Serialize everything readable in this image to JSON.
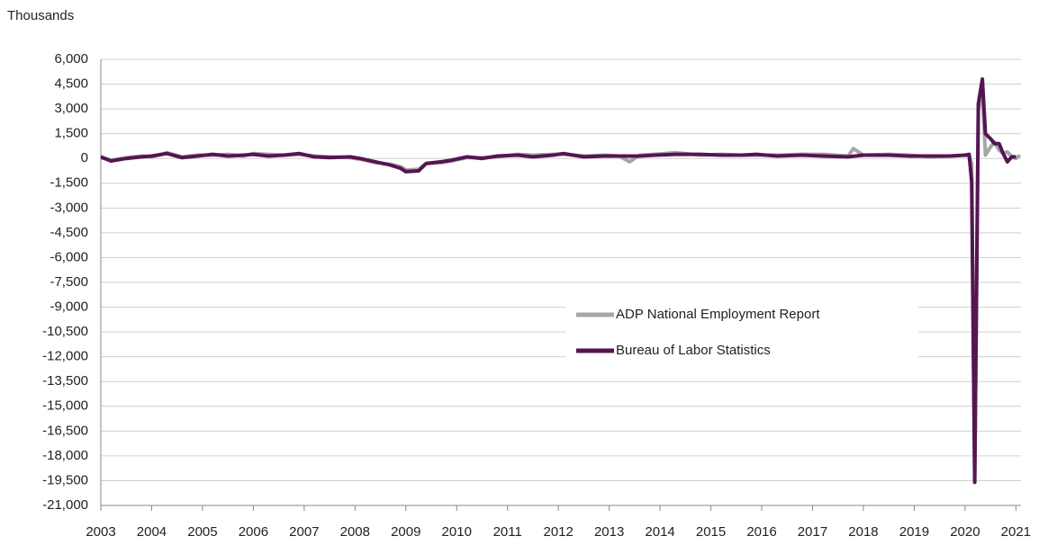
{
  "chart_data": {
    "type": "line",
    "y_label": "Thousands",
    "xlim": [
      2003,
      2021.1
    ],
    "xticks": [
      2003,
      2004,
      2005,
      2006,
      2007,
      2008,
      2009,
      2010,
      2011,
      2012,
      2013,
      2014,
      2015,
      2016,
      2017,
      2018,
      2019,
      2020,
      2021
    ],
    "ylim": [
      -21000,
      6000
    ],
    "yticks": [
      {
        "value": 6000,
        "label": "6,000"
      },
      {
        "value": 4500,
        "label": "4,500"
      },
      {
        "value": 3000,
        "label": "3,000"
      },
      {
        "value": 1500,
        "label": "1,500"
      },
      0,
      {
        "value": -1500,
        "label": "-1,500"
      },
      {
        "value": -3000,
        "label": "-3,000"
      },
      {
        "value": -4500,
        "label": "-4,500"
      },
      {
        "value": -6000,
        "label": "-6,000"
      },
      {
        "value": -7500,
        "label": "-7,500"
      },
      {
        "value": -9000,
        "label": "-9,000"
      },
      {
        "value": -10500,
        "label": "-10,500"
      },
      {
        "value": -12000,
        "label": "-12,000"
      },
      {
        "value": -13500,
        "label": "-13,500"
      },
      {
        "value": -15000,
        "label": "-15,000"
      },
      {
        "value": -16500,
        "label": "-16,500"
      },
      {
        "value": -18000,
        "label": "-18,000"
      },
      {
        "value": -19500,
        "label": "-19,500"
      },
      {
        "value": -21000,
        "label": "-21,000"
      }
    ],
    "grid": true,
    "series": [
      {
        "name": "ADP National Employment Report",
        "color": "#a6a6a6",
        "x": [
          2003.0,
          2003.2,
          2003.5,
          2003.8,
          2004.0,
          2004.3,
          2004.6,
          2004.9,
          2005.2,
          2005.5,
          2005.8,
          2006.0,
          2006.3,
          2006.6,
          2006.9,
          2007.2,
          2007.5,
          2007.9,
          2008.1,
          2008.4,
          2008.7,
          2008.9,
          2009.0,
          2009.25,
          2009.4,
          2009.7,
          2009.9,
          2010.2,
          2010.5,
          2010.8,
          2011.2,
          2011.5,
          2011.9,
          2012.1,
          2012.5,
          2012.9,
          2013.2,
          2013.4,
          2013.6,
          2013.9,
          2014.3,
          2014.8,
          2015.2,
          2015.6,
          2015.9,
          2016.3,
          2016.8,
          2017.2,
          2017.7,
          2017.8,
          2018.0,
          2018.5,
          2018.9,
          2019.3,
          2019.7,
          2020.0,
          2020.08,
          2020.13,
          2020.19,
          2020.26,
          2020.34,
          2020.4,
          2020.5,
          2020.58,
          2020.67,
          2020.75,
          2020.83,
          2020.92,
          2021.0,
          2021.08
        ],
        "values": [
          50,
          -100,
          50,
          150,
          100,
          350,
          100,
          200,
          200,
          250,
          150,
          300,
          250,
          200,
          250,
          150,
          100,
          50,
          -50,
          -250,
          -350,
          -500,
          -700,
          -650,
          -300,
          -250,
          -150,
          50,
          50,
          100,
          250,
          200,
          250,
          250,
          150,
          200,
          150,
          -200,
          200,
          250,
          350,
          200,
          250,
          200,
          200,
          200,
          250,
          250,
          150,
          600,
          200,
          250,
          200,
          100,
          150,
          200,
          150,
          -300,
          -19400,
          3000,
          4000,
          200,
          700,
          1000,
          500,
          300,
          400,
          100,
          0,
          200
        ]
      },
      {
        "name": "Bureau of Labor Statistics",
        "color": "#541553",
        "x": [
          2003.0,
          2003.2,
          2003.5,
          2003.8,
          2004.0,
          2004.3,
          2004.6,
          2004.9,
          2005.2,
          2005.5,
          2005.8,
          2006.0,
          2006.3,
          2006.6,
          2006.9,
          2007.2,
          2007.5,
          2007.9,
          2008.1,
          2008.4,
          2008.7,
          2008.9,
          2009.0,
          2009.25,
          2009.4,
          2009.7,
          2009.9,
          2010.2,
          2010.5,
          2010.8,
          2011.2,
          2011.5,
          2011.9,
          2012.1,
          2012.5,
          2012.9,
          2013.2,
          2013.6,
          2013.9,
          2014.3,
          2014.8,
          2015.2,
          2015.6,
          2015.9,
          2016.3,
          2016.8,
          2017.2,
          2017.7,
          2018.0,
          2018.5,
          2018.9,
          2019.3,
          2019.7,
          2020.0,
          2020.08,
          2020.13,
          2020.19,
          2020.26,
          2020.34,
          2020.4,
          2020.5,
          2020.58,
          2020.67,
          2020.75,
          2020.83,
          2020.92,
          2021.0
        ],
        "values": [
          100,
          -150,
          0,
          100,
          150,
          300,
          50,
          150,
          250,
          150,
          200,
          250,
          150,
          200,
          300,
          100,
          50,
          100,
          0,
          -200,
          -400,
          -600,
          -800,
          -750,
          -300,
          -200,
          -100,
          100,
          0,
          150,
          200,
          100,
          200,
          300,
          100,
          150,
          150,
          150,
          200,
          250,
          250,
          200,
          200,
          250,
          150,
          200,
          150,
          100,
          200,
          200,
          150,
          150,
          150,
          200,
          250,
          -1400,
          -19600,
          3300,
          4800,
          1500,
          1200,
          900,
          900,
          300,
          -200,
          100,
          100
        ]
      }
    ]
  }
}
